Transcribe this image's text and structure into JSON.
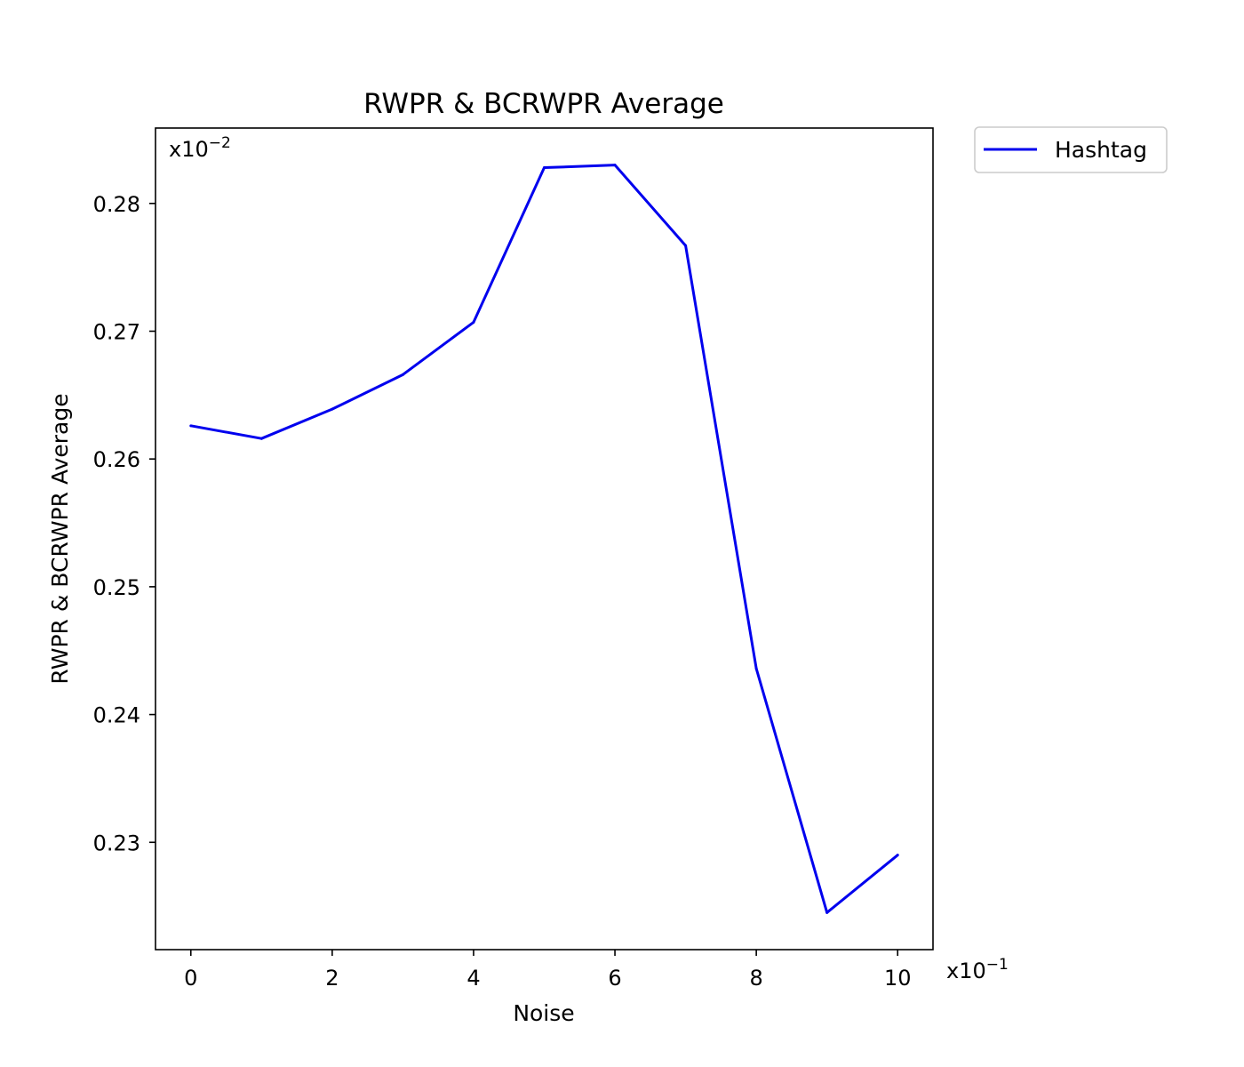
{
  "chart_data": {
    "type": "line",
    "title": "RWPR & BCRWPR Average",
    "xlabel": "Noise",
    "ylabel": "RWPR & BCRWPR Average",
    "x_multiplier_label": "x10",
    "x_multiplier_exp": "−1",
    "y_multiplier_label": "x10",
    "y_multiplier_exp": "−2",
    "xlim": [
      -0.5,
      10.5
    ],
    "ylim": [
      0.2216,
      0.2859
    ],
    "x_ticks": [
      0,
      2,
      4,
      6,
      8,
      10
    ],
    "x_tick_labels": [
      "0",
      "2",
      "4",
      "6",
      "8",
      "10"
    ],
    "y_ticks": [
      0.23,
      0.24,
      0.25,
      0.26,
      0.27,
      0.28
    ],
    "y_tick_labels": [
      "0.23",
      "0.24",
      "0.25",
      "0.26",
      "0.27",
      "0.28"
    ],
    "grid": false,
    "legend_position": "outside-top-right",
    "series": [
      {
        "name": "Hashtag",
        "color": "#0000ee",
        "x": [
          0,
          1,
          2,
          3,
          4,
          5,
          6,
          7,
          8,
          9,
          10
        ],
        "y": [
          0.2626,
          0.2616,
          0.2639,
          0.2666,
          0.2707,
          0.2828,
          0.283,
          0.2767,
          0.2436,
          0.2245,
          0.229
        ]
      }
    ]
  }
}
